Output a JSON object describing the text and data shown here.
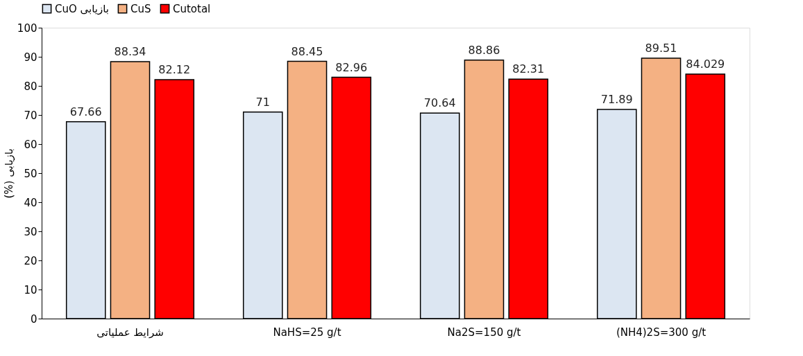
{
  "chart_data": {
    "type": "bar",
    "ylabel": "(%) بازیابی",
    "categories": [
      "شرایط عملیاتی",
      "NaHS=25 g/t",
      "Na2S=150 g/t",
      "(NH4)2S=300 g/t"
    ],
    "series": [
      {
        "name": "CuO بازیابی",
        "color": "#dce6f2",
        "values": [
          67.66,
          71,
          70.64,
          71.89
        ],
        "value_labels": [
          "67.66",
          "71",
          "70.64",
          "71.89"
        ]
      },
      {
        "name": "CuS",
        "color": "#f4b183",
        "values": [
          88.34,
          88.45,
          88.86,
          89.51
        ],
        "value_labels": [
          "88.34",
          "88.45",
          "88.86",
          "89.51"
        ]
      },
      {
        "name": "Cutotal",
        "color": "#ff0000",
        "values": [
          82.12,
          82.96,
          82.31,
          84.029
        ],
        "value_labels": [
          "82.12",
          "82.96",
          "82.31",
          "84.029"
        ]
      }
    ],
    "ylim": [
      0,
      100
    ],
    "yticks": [
      0,
      10,
      20,
      30,
      40,
      50,
      60,
      70,
      80,
      90,
      100
    ],
    "grid": false,
    "legend": "top"
  }
}
